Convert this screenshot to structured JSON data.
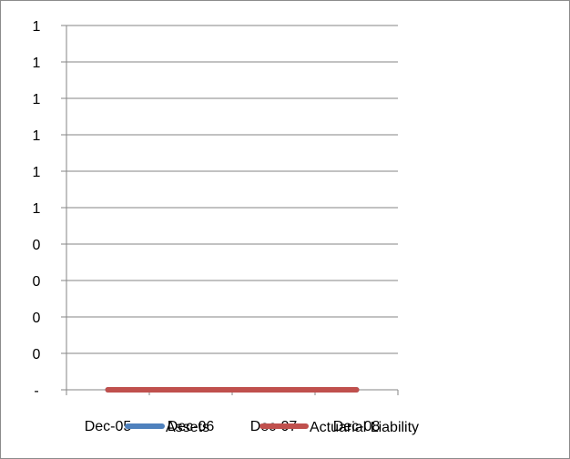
{
  "chart_data": {
    "type": "line",
    "categories": [
      "Dec-05",
      "Dec-06",
      "Dec-07",
      "Dec-08"
    ],
    "y_tick_labels": [
      "-",
      "0",
      "0",
      "0",
      "0",
      "1",
      "1",
      "1",
      "1",
      "1",
      "1"
    ],
    "ylim": [
      0,
      1
    ],
    "grid": true,
    "legend": "bottom",
    "series": [
      {
        "name": "Assets",
        "values": [
          0,
          0,
          0,
          0
        ],
        "color": "#4f81bd"
      },
      {
        "name": "Actuarial Liability",
        "values": [
          0,
          0,
          0,
          0
        ],
        "color": "#c0504d"
      }
    ]
  }
}
